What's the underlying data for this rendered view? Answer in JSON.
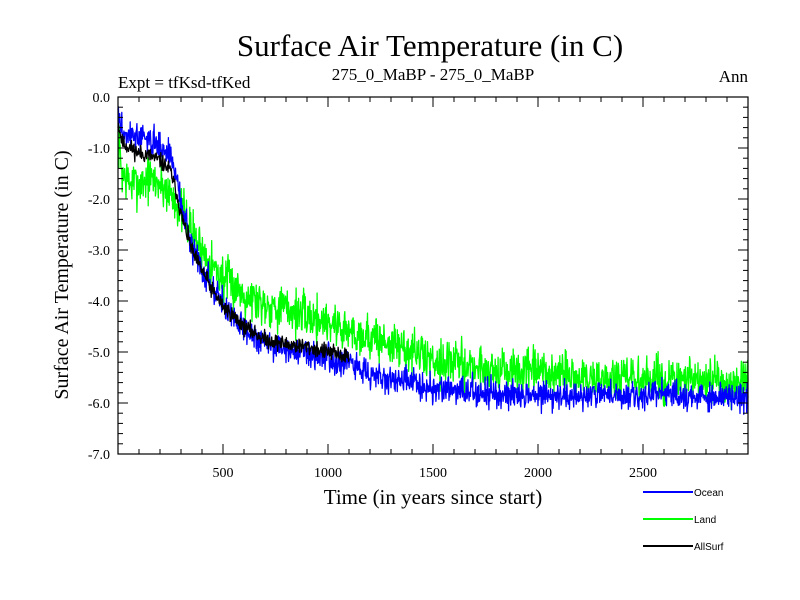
{
  "chart_data": {
    "type": "line",
    "title": "Surface Air Temperature (in C)",
    "subtitle_left": "Expt = tfKsd-tfKed",
    "subtitle_center": "275_0_MaBP - 275_0_MaBP",
    "subtitle_right": "Ann",
    "xlabel": "Time (in years since start)",
    "ylabel": "Surface Air Temperature (in C)",
    "xlim": [
      0,
      3000
    ],
    "ylim": [
      -7.0,
      0.0
    ],
    "xticks": [
      500,
      1000,
      1500,
      2000,
      2500
    ],
    "xtick_labels": [
      "500",
      "1000",
      "1500",
      "2000",
      "2500"
    ],
    "yticks": [
      0,
      -1,
      -2,
      -3,
      -4,
      -5,
      -6,
      -7
    ],
    "ytick_labels": [
      "0.0",
      "-1.0",
      "-2.0",
      "-3.0",
      "-4.0",
      "-5.0",
      "-6.0",
      "-7.0"
    ],
    "legend_position": "bottom-right",
    "series": [
      {
        "name": "Land",
        "color": "#00ff00",
        "noise": 0.22,
        "seed": 7,
        "x": [
          0,
          20,
          60,
          100,
          150,
          200,
          250,
          300,
          350,
          400,
          450,
          500,
          600,
          700,
          800,
          900,
          1000,
          1100,
          1200,
          1300,
          1400,
          1500,
          1600,
          1700,
          1800,
          1900,
          2000,
          2200,
          2400,
          2600,
          2800,
          3000
        ],
        "values": [
          -0.8,
          -1.5,
          -1.7,
          -1.7,
          -1.6,
          -1.7,
          -1.9,
          -2.2,
          -2.6,
          -3.0,
          -3.3,
          -3.55,
          -3.85,
          -4.05,
          -4.15,
          -4.3,
          -4.4,
          -4.6,
          -4.7,
          -4.85,
          -5.0,
          -5.15,
          -5.2,
          -5.3,
          -5.35,
          -5.4,
          -5.4,
          -5.5,
          -5.55,
          -5.55,
          -5.6,
          -5.6
        ]
      },
      {
        "name": "Ocean",
        "color": "#0000ff",
        "noise": 0.14,
        "seed": 3,
        "x": [
          0,
          20,
          60,
          100,
          150,
          200,
          250,
          280,
          300,
          330,
          360,
          400,
          450,
          500,
          600,
          700,
          800,
          900,
          1000,
          1100,
          1200,
          1300,
          1400,
          1500,
          1600,
          1700,
          1800,
          1900,
          2000,
          2200,
          2400,
          2600,
          2800,
          3000
        ],
        "values": [
          -0.3,
          -0.7,
          -0.75,
          -0.8,
          -0.85,
          -0.95,
          -1.15,
          -1.6,
          -2.1,
          -2.6,
          -3.0,
          -3.3,
          -3.75,
          -4.05,
          -4.55,
          -4.8,
          -4.95,
          -5.0,
          -5.1,
          -5.25,
          -5.4,
          -5.55,
          -5.6,
          -5.7,
          -5.75,
          -5.8,
          -5.8,
          -5.8,
          -5.85,
          -5.85,
          -5.85,
          -5.85,
          -5.9,
          -5.85
        ]
      },
      {
        "name": "AllSurf",
        "color": "#000000",
        "noise": 0.08,
        "seed": 11,
        "x": [
          0,
          20,
          60,
          100,
          150,
          200,
          250,
          280,
          300,
          330,
          360,
          400,
          450,
          500,
          600,
          700,
          800,
          900,
          1000,
          1100
        ],
        "values": [
          -0.5,
          -0.9,
          -1.0,
          -1.1,
          -1.15,
          -1.25,
          -1.45,
          -1.9,
          -2.3,
          -2.7,
          -3.1,
          -3.4,
          -3.8,
          -4.1,
          -4.5,
          -4.75,
          -4.85,
          -4.9,
          -5.0,
          -5.1
        ]
      }
    ]
  }
}
